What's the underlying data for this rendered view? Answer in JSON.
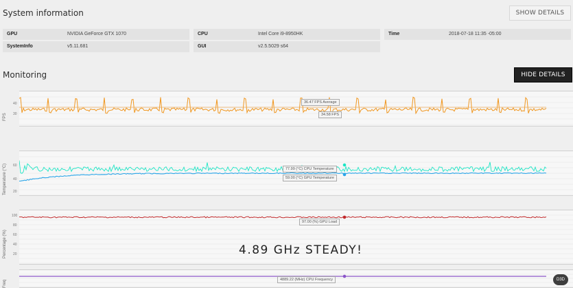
{
  "system": {
    "title": "System information",
    "show_details": "SHOW DETAILS",
    "rows": [
      {
        "label": "GPU",
        "value": "NVIDIA GeForce GTX 1070"
      },
      {
        "label": "CPU",
        "value": "Intel Core i9-8950HK"
      },
      {
        "label": "Time",
        "value": "2018-07-18 11:35 -05:00"
      },
      {
        "label": "SystemInfo",
        "value": "v5.11.681"
      },
      {
        "label": "GUI",
        "value": "v2.5.5029 s64"
      }
    ]
  },
  "monitoring": {
    "title": "Monitoring",
    "hide_details": "HIDE DETAILS",
    "overlay_text": "4.89 GHz STEADY!",
    "badge": "D3D"
  },
  "charts": {
    "fps": {
      "ylabel": "FPS",
      "ticks": [
        "40",
        "30"
      ],
      "tag_avg": "36.47 FPS Average",
      "tag_val": "34.58 FPS",
      "color_line": "#f0961e",
      "color_avg": "#f0b060"
    },
    "temp": {
      "ylabel": "Temperature (°C)",
      "ticks": [
        "60",
        "40",
        "20"
      ],
      "tag_cpu": "77.99 (°C) CPU Temperature",
      "tag_gpu": "59.00 (°C) GPU Temperature",
      "color_cpu": "#1de5c5",
      "color_gpu": "#2aa5e8"
    },
    "load": {
      "ylabel": "Percentage (%)",
      "ticks": [
        "100",
        "80",
        "60",
        "40",
        "20"
      ],
      "tag": "97.00 (%) GPU Load",
      "color": "#c0282a"
    },
    "freq": {
      "ylabel": "Freq",
      "tag": "4889.22 (MHz) CPU Frequency",
      "color": "#8b55c9"
    }
  }
}
